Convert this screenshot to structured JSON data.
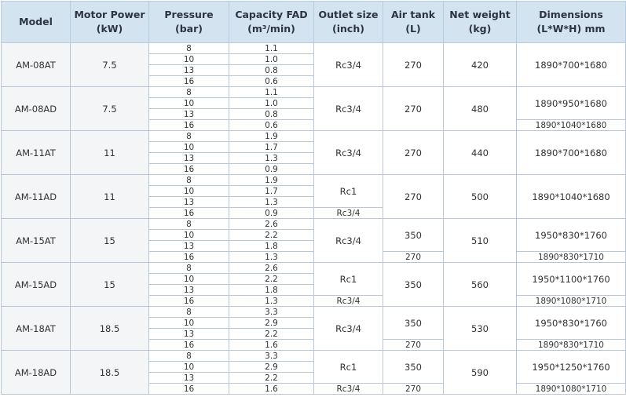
{
  "table": {
    "headers": [
      [
        "Model"
      ],
      [
        "Motor Power",
        "(kW)"
      ],
      [
        "Pressure",
        "(bar)"
      ],
      [
        "Capacity FAD",
        "(m³/min)"
      ],
      [
        "Outlet size",
        "(inch)"
      ],
      [
        "Air tank",
        "(L)"
      ],
      [
        "Net weight",
        "(kg)"
      ],
      [
        "Dimensions",
        "(L*W*H) mm"
      ]
    ],
    "rows": [
      {
        "model": "AM-08AT",
        "power": "7.5",
        "pressure": [
          "8",
          "10",
          "13",
          "16"
        ],
        "capacity": [
          "1.1",
          "1.0",
          "0.8",
          "0.6"
        ],
        "outlet": [
          "Rc3/4"
        ],
        "tank": [
          "270"
        ],
        "weight": "420",
        "dims": [
          "1890*700*1680"
        ]
      },
      {
        "model": "AM-08AD",
        "power": "7.5",
        "pressure": [
          "8",
          "10",
          "13",
          "16"
        ],
        "capacity": [
          "1.1",
          "1.0",
          "0.8",
          "0.6"
        ],
        "outlet": [
          "Rc3/4"
        ],
        "tank": [
          "270"
        ],
        "weight": "480",
        "dims": [
          "1890*950*1680",
          "1890*1040*1680"
        ]
      },
      {
        "model": "AM-11AT",
        "power": "11",
        "pressure": [
          "8",
          "10",
          "13",
          "16"
        ],
        "capacity": [
          "1.9",
          "1.7",
          "1.3",
          "0.9"
        ],
        "outlet": [
          "Rc3/4"
        ],
        "tank": [
          "270"
        ],
        "weight": "440",
        "dims": [
          "1890*700*1680"
        ]
      },
      {
        "model": "AM-11AD",
        "power": "11",
        "pressure": [
          "8",
          "10",
          "13",
          "16"
        ],
        "capacity": [
          "1.9",
          "1.7",
          "1.3",
          "0.9"
        ],
        "outlet": [
          "Rc1",
          "Rc3/4"
        ],
        "tank": [
          "270"
        ],
        "weight": "500",
        "dims": [
          "1890*1040*1680"
        ]
      },
      {
        "model": "AM-15AT",
        "power": "15",
        "pressure": [
          "8",
          "10",
          "13",
          "16"
        ],
        "capacity": [
          "2.6",
          "2.2",
          "1.8",
          "1.3"
        ],
        "outlet": [
          "Rc3/4"
        ],
        "tank": [
          "350",
          "270"
        ],
        "weight": "510",
        "dims": [
          "1950*830*1760",
          "1890*830*1710"
        ]
      },
      {
        "model": "AM-15AD",
        "power": "15",
        "pressure": [
          "8",
          "10",
          "13",
          "16"
        ],
        "capacity": [
          "2.6",
          "2.2",
          "1.8",
          "1.3"
        ],
        "outlet": [
          "Rc1",
          "Rc3/4"
        ],
        "tank": [
          "350"
        ],
        "weight": "560",
        "dims": [
          "1950*1100*1760",
          "1890*1080*1710"
        ]
      },
      {
        "model": "AM-18AT",
        "power": "18.5",
        "pressure": [
          "8",
          "10",
          "13",
          "16"
        ],
        "capacity": [
          "3.3",
          "2.9",
          "2.2",
          "1.6"
        ],
        "outlet": [
          "Rc3/4"
        ],
        "tank": [
          "350",
          "270"
        ],
        "weight": "530",
        "dims": [
          "1950*830*1760",
          "1890*830*1710"
        ]
      },
      {
        "model": "AM-18AD",
        "power": "18.5",
        "pressure": [
          "8",
          "10",
          "13",
          "16"
        ],
        "capacity": [
          "3.3",
          "2.9",
          "2.2",
          "1.6"
        ],
        "outlet": [
          "Rc1",
          "Rc3/4"
        ],
        "tank": [
          "350",
          "270"
        ],
        "weight": "590",
        "dims": [
          "1950*1250*1760",
          "1890*1080*1710"
        ]
      }
    ]
  }
}
